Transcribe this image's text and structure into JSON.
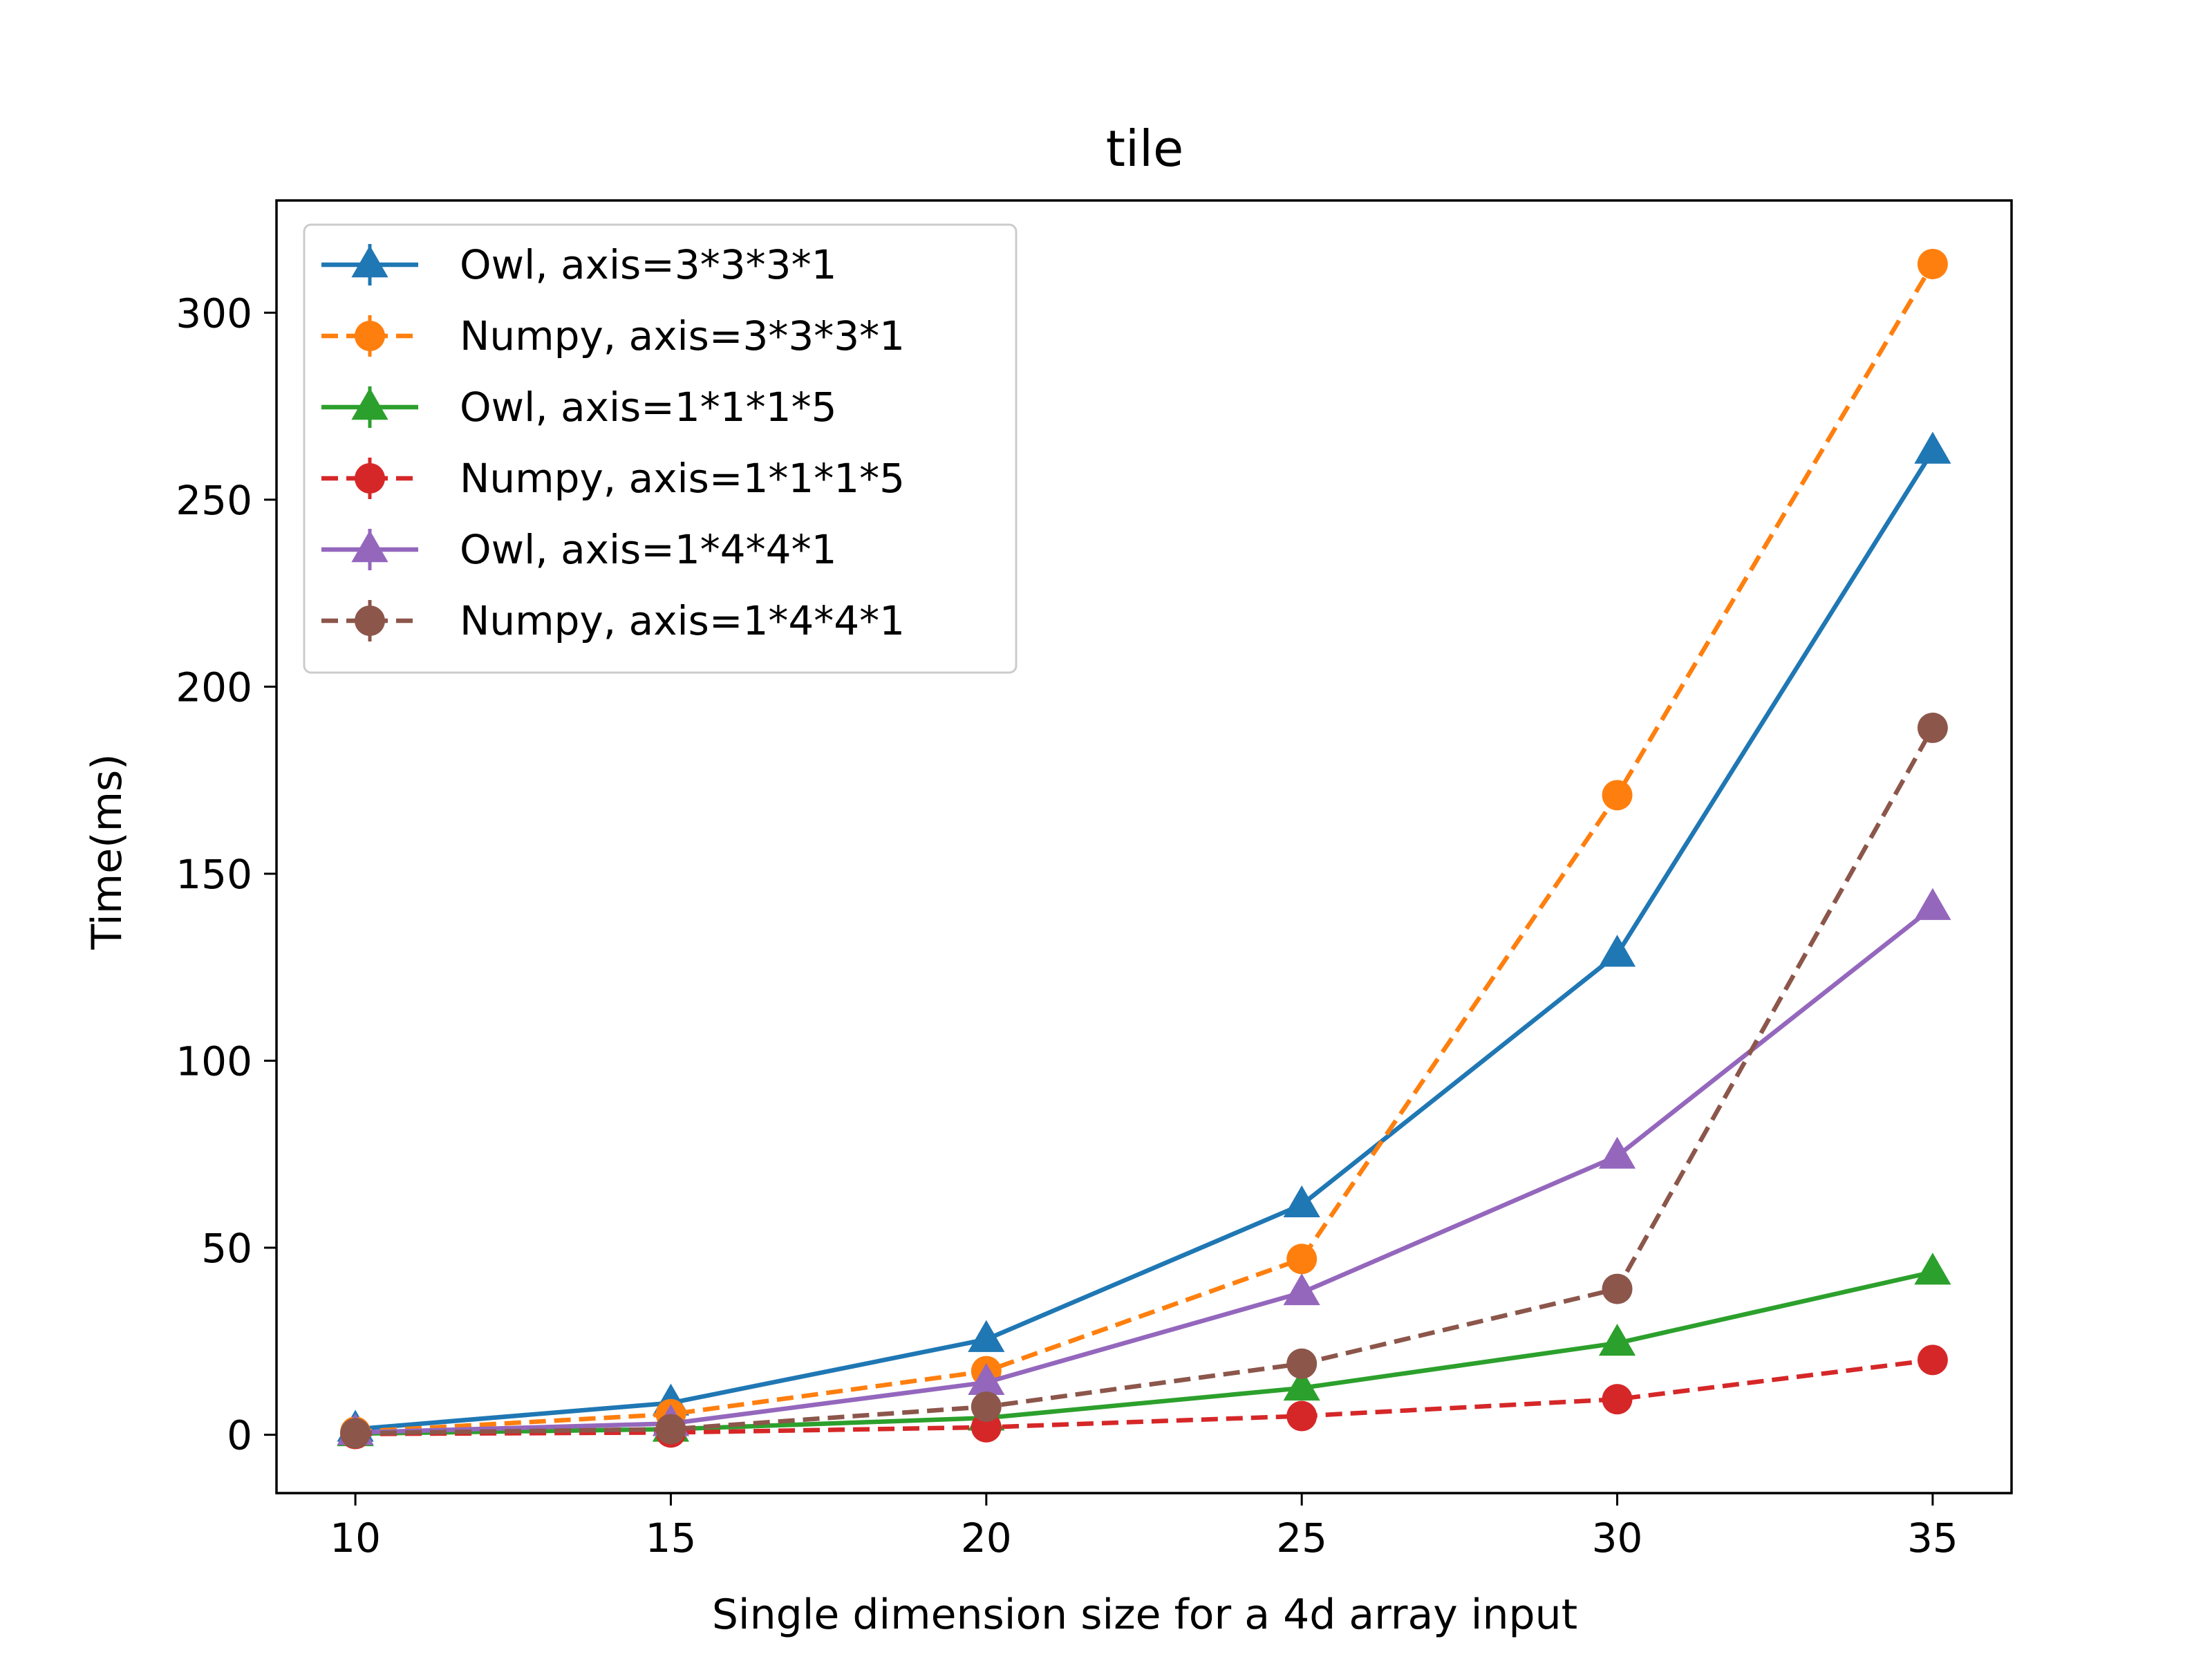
{
  "chart_data": {
    "type": "line",
    "title": "tile",
    "xlabel": "Single dimension size for a 4d array input",
    "ylabel": "Time(ms)",
    "x": [
      10,
      15,
      20,
      25,
      30,
      35
    ],
    "xlim": [
      8.75,
      36.25
    ],
    "ylim": [
      -15.6,
      330
    ],
    "xticks": [
      10,
      15,
      20,
      25,
      30,
      35
    ],
    "yticks": [
      0,
      50,
      100,
      150,
      200,
      250,
      300
    ],
    "grid": false,
    "legend_position": "upper left",
    "series": [
      {
        "name": "Owl, axis=3*3*3*1",
        "color": "#1f77b4",
        "style": "solid",
        "marker": "triangle",
        "values": [
          1.5,
          8.5,
          25.5,
          61.5,
          128.5,
          263
        ]
      },
      {
        "name": "Numpy, axis=3*3*3*1",
        "color": "#ff7f0e",
        "style": "dashed",
        "marker": "circle",
        "values": [
          0.8,
          5.5,
          17.0,
          47.0,
          171.0,
          313.0
        ]
      },
      {
        "name": "Owl, axis=1*1*1*5",
        "color": "#2ca02c",
        "style": "solid",
        "marker": "triangle",
        "values": [
          0.3,
          1.5,
          4.5,
          12.5,
          24.5,
          43.5
        ]
      },
      {
        "name": "Numpy, axis=1*1*1*5",
        "color": "#d62728",
        "style": "dashed",
        "marker": "circle",
        "values": [
          0.2,
          0.6,
          2.0,
          5.0,
          9.5,
          20.0
        ]
      },
      {
        "name": "Owl, axis=1*4*4*1",
        "color": "#9467bd",
        "style": "solid",
        "marker": "triangle",
        "values": [
          0.6,
          3.0,
          14.0,
          38.0,
          74.5,
          141.0
        ]
      },
      {
        "name": "Numpy, axis=1*4*4*1",
        "color": "#8c564b",
        "style": "dashed",
        "marker": "circle",
        "values": [
          0.4,
          1.5,
          7.5,
          19.0,
          39.0,
          189.0
        ]
      }
    ]
  }
}
